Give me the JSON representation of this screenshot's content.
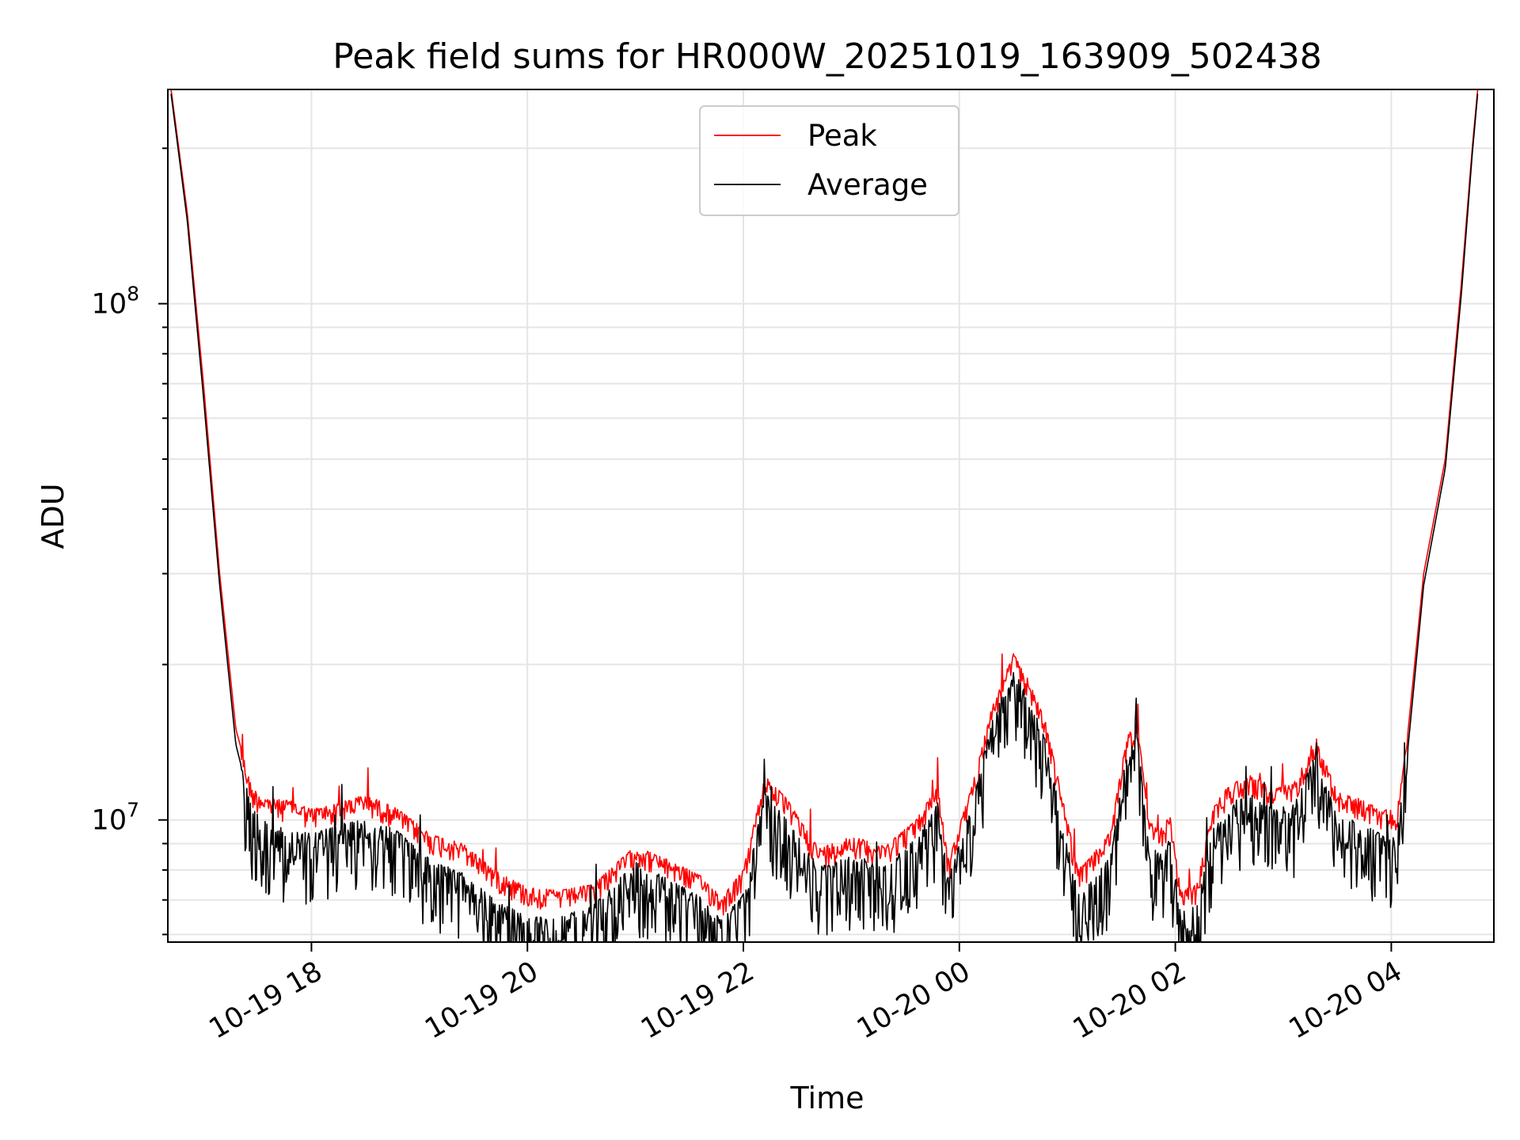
{
  "chart_data": {
    "type": "line",
    "title": "Peak field sums for HR000W_20251019_163909_502438",
    "xlabel": "Time",
    "ylabel": "ADU",
    "yscale": "log",
    "grid": true,
    "legend_position": "top-center",
    "x_unit": "hours since 2025-10-19 00:00",
    "xlim": [
      16.67,
      28.95
    ],
    "ylim": [
      5800000,
      260000000
    ],
    "x_tick_values": [
      18,
      20,
      22,
      24,
      26,
      28
    ],
    "x_tick_labels": [
      "10-19 18",
      "10-19 20",
      "10-19 22",
      "10-20 00",
      "10-20 02",
      "10-20 04"
    ],
    "y_tick_values": [
      10000000,
      100000000
    ],
    "y_tick_labels": [
      {
        "base": "10",
        "exp": "7"
      },
      {
        "base": "10",
        "exp": "8"
      }
    ],
    "series": [
      {
        "name": "Peak",
        "color": "#ff0000",
        "x": [
          16.7,
          16.85,
          17.0,
          17.15,
          17.3,
          17.45,
          17.6,
          17.8,
          18.0,
          18.2,
          18.5,
          18.8,
          19.1,
          19.4,
          19.7,
          20.0,
          20.3,
          20.6,
          21.0,
          21.4,
          21.6,
          21.8,
          22.0,
          22.2,
          22.4,
          22.7,
          23.0,
          23.3,
          23.6,
          23.8,
          23.9,
          24.0,
          24.1,
          24.3,
          24.5,
          24.65,
          24.8,
          25.0,
          25.1,
          25.2,
          25.4,
          25.55,
          25.65,
          25.75,
          25.85,
          25.95,
          26.05,
          26.2,
          26.35,
          26.5,
          26.7,
          26.9,
          27.1,
          27.3,
          27.5,
          27.7,
          27.9,
          28.05,
          28.15,
          28.3,
          28.5,
          28.65,
          28.75,
          28.8
        ],
        "y": [
          260000000,
          150000000,
          70000000,
          30000000,
          15000000,
          11500000,
          11000000,
          10900000,
          10500000,
          10700000,
          11200000,
          10500000,
          9400000,
          9000000,
          8000000,
          7400000,
          7300000,
          7500000,
          8900000,
          8200000,
          7800000,
          7100000,
          8000000,
          12200000,
          11000000,
          8800000,
          9300000,
          8900000,
          10000000,
          11700000,
          8300000,
          9800000,
          11300000,
          16500000,
          21000000,
          18500000,
          15500000,
          10000000,
          8000000,
          8400000,
          9500000,
          14500000,
          15500000,
          10000000,
          9500000,
          10200000,
          7300000,
          7500000,
          10600000,
          11700000,
          12200000,
          11500000,
          11800000,
          14500000,
          11300000,
          11000000,
          10500000,
          10400000,
          14500000,
          30000000,
          50000000,
          110000000,
          200000000,
          260000000
        ]
      },
      {
        "name": "Average",
        "color": "#000000",
        "x": [
          16.7,
          16.85,
          17.0,
          17.15,
          17.3,
          17.45,
          17.6,
          17.8,
          18.0,
          18.2,
          18.5,
          18.8,
          19.1,
          19.4,
          19.7,
          20.0,
          20.3,
          20.6,
          21.0,
          21.4,
          21.6,
          21.8,
          22.0,
          22.2,
          22.4,
          22.7,
          23.0,
          23.3,
          23.6,
          23.8,
          23.9,
          24.0,
          24.1,
          24.3,
          24.5,
          24.65,
          24.8,
          25.0,
          25.1,
          25.2,
          25.4,
          25.55,
          25.65,
          25.75,
          25.85,
          25.95,
          26.05,
          26.2,
          26.35,
          26.5,
          26.7,
          26.9,
          27.1,
          27.3,
          27.5,
          27.7,
          27.9,
          28.05,
          28.15,
          28.3,
          28.5,
          28.65,
          28.75,
          28.8
        ],
        "y": [
          255000000,
          145000000,
          66000000,
          28500000,
          14000000,
          10500000,
          9800000,
          9600000,
          9400000,
          9700000,
          10200000,
          9500000,
          8400000,
          7900000,
          7000000,
          6500000,
          6500000,
          6800000,
          8300000,
          7500000,
          7100000,
          6400000,
          7200000,
          11300000,
          10000000,
          8100000,
          8500000,
          8100000,
          9200000,
          10800000,
          7700000,
          9000000,
          10400000,
          15500000,
          19500000,
          17200000,
          14200000,
          9000000,
          7200000,
          7500000,
          8500000,
          13500000,
          14500000,
          9000000,
          8600000,
          9300000,
          6700000,
          6800000,
          9600000,
          10800000,
          11200000,
          10500000,
          10700000,
          13400000,
          10200000,
          9900000,
          9400000,
          9300000,
          13500000,
          28500000,
          48000000,
          105000000,
          195000000,
          255000000
        ]
      }
    ]
  }
}
